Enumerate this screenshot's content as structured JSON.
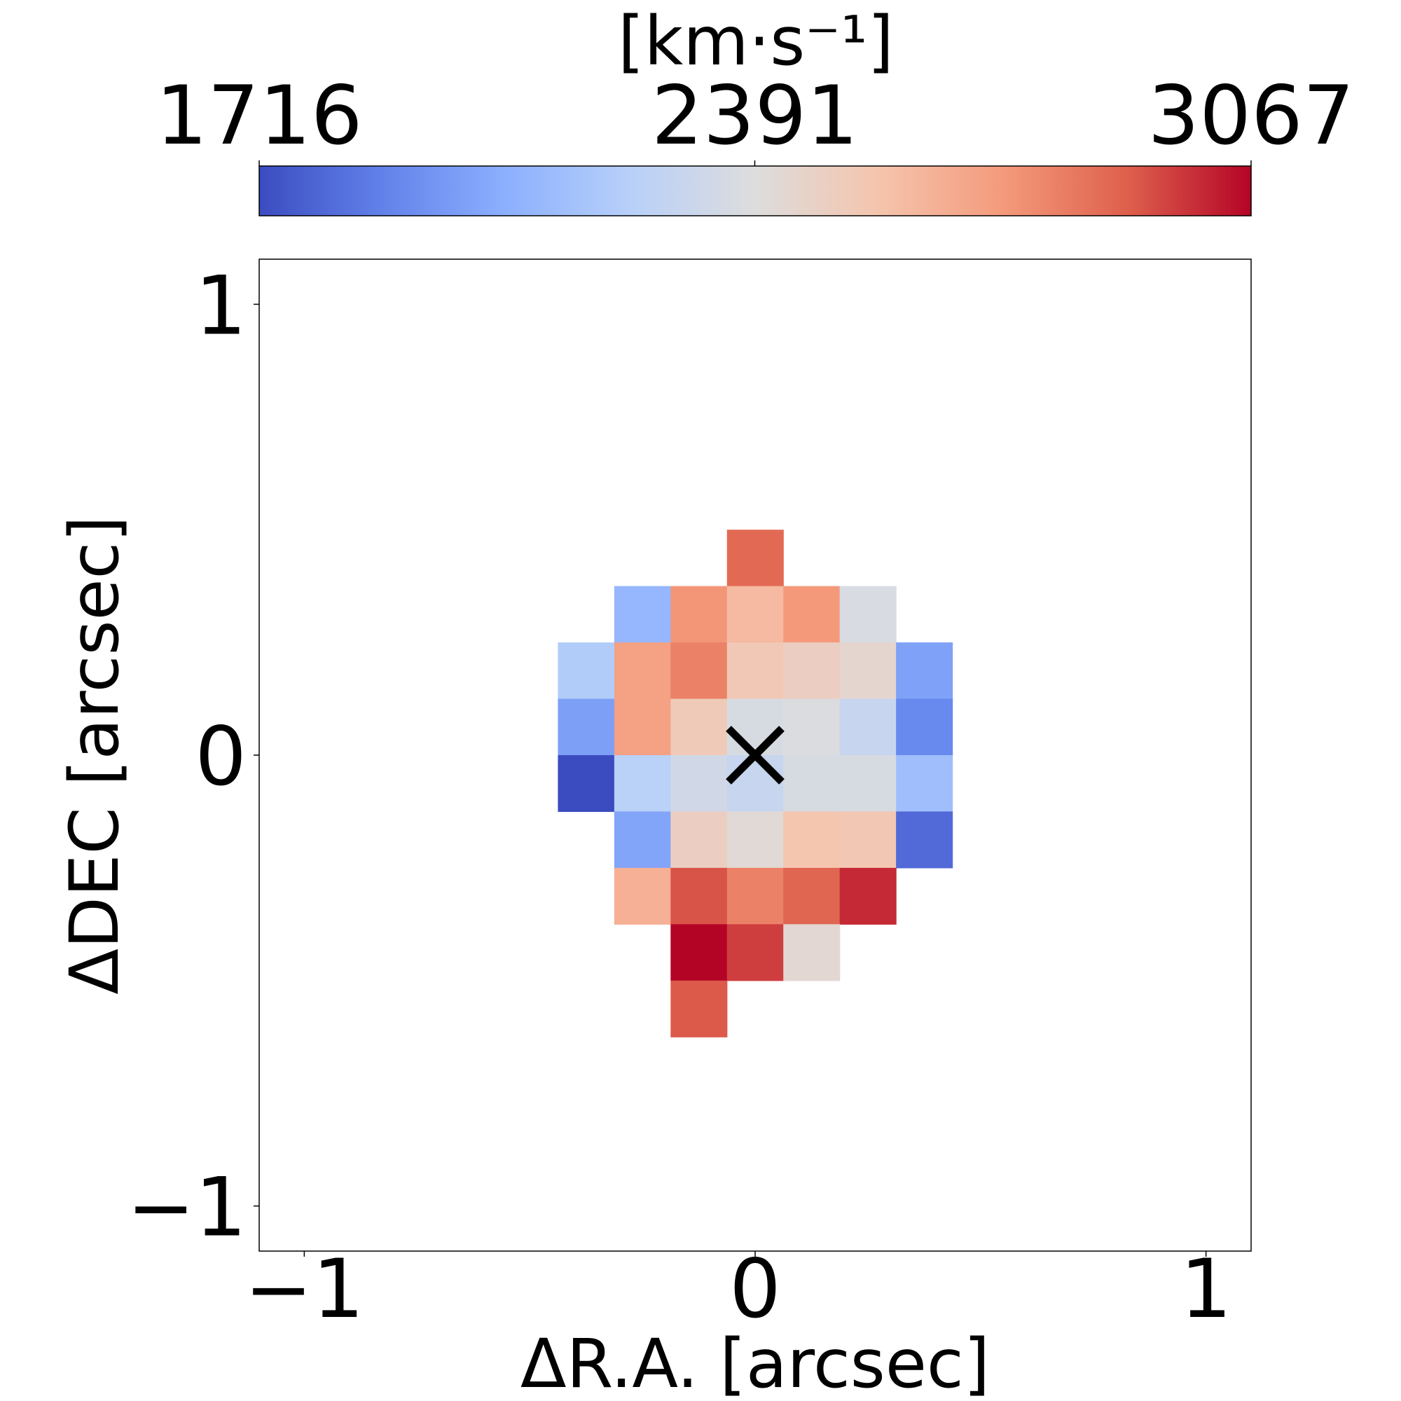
{
  "chart_data": {
    "type": "heatmap",
    "xlabel": "ΔR.A. [arcsec]",
    "ylabel": "ΔDEC [arcsec]",
    "xlim": [
      -1.1,
      1.1
    ],
    "ylim": [
      -1.1,
      1.1
    ],
    "xticks": [
      {
        "value": -1,
        "label": "−1"
      },
      {
        "value": 0,
        "label": "0"
      },
      {
        "value": 1,
        "label": "1"
      }
    ],
    "yticks": [
      {
        "value": -1,
        "label": "−1"
      },
      {
        "value": 0,
        "label": "0"
      },
      {
        "value": 1,
        "label": "1"
      }
    ],
    "pixel_size_arcsec": 0.125,
    "colorbar": {
      "label": "[km·s⁻¹]",
      "colormap": "coolwarm",
      "min": 1716,
      "max": 3067,
      "ticks": [
        {
          "value": 1716,
          "label": "1716"
        },
        {
          "value": 2391,
          "label": "2391"
        },
        {
          "value": 3067,
          "label": "3067"
        }
      ]
    },
    "marker": {
      "type": "x",
      "x": 0,
      "y": 0,
      "color": "#000000"
    },
    "cells": [
      {
        "x": 0.0,
        "y": 0.4375,
        "value": 2870
      },
      {
        "x": -0.25,
        "y": 0.3125,
        "value": 2090
      },
      {
        "x": -0.125,
        "y": 0.3125,
        "value": 2740
      },
      {
        "x": 0.0,
        "y": 0.3125,
        "value": 2600
      },
      {
        "x": 0.125,
        "y": 0.3125,
        "value": 2730
      },
      {
        "x": 0.25,
        "y": 0.3125,
        "value": 2370
      },
      {
        "x": -0.375,
        "y": 0.1875,
        "value": 2200
      },
      {
        "x": -0.25,
        "y": 0.1875,
        "value": 2700
      },
      {
        "x": -0.125,
        "y": 0.1875,
        "value": 2800
      },
      {
        "x": 0.0,
        "y": 0.1875,
        "value": 2530
      },
      {
        "x": 0.125,
        "y": 0.1875,
        "value": 2490
      },
      {
        "x": 0.25,
        "y": 0.1875,
        "value": 2440
      },
      {
        "x": 0.375,
        "y": 0.1875,
        "value": 2000
      },
      {
        "x": -0.375,
        "y": 0.0625,
        "value": 1990
      },
      {
        "x": -0.25,
        "y": 0.0625,
        "value": 2700
      },
      {
        "x": -0.125,
        "y": 0.0625,
        "value": 2520
      },
      {
        "x": 0.0,
        "y": 0.0625,
        "value": 2360
      },
      {
        "x": 0.125,
        "y": 0.0625,
        "value": 2380
      },
      {
        "x": 0.25,
        "y": 0.0625,
        "value": 2290
      },
      {
        "x": 0.375,
        "y": 0.0625,
        "value": 1910
      },
      {
        "x": -0.375,
        "y": -0.0625,
        "value": 1716
      },
      {
        "x": -0.25,
        "y": -0.0625,
        "value": 2230
      },
      {
        "x": -0.125,
        "y": -0.0625,
        "value": 2330
      },
      {
        "x": 0.0,
        "y": -0.0625,
        "value": 2290
      },
      {
        "x": 0.125,
        "y": -0.0625,
        "value": 2360
      },
      {
        "x": 0.25,
        "y": -0.0625,
        "value": 2360
      },
      {
        "x": 0.375,
        "y": -0.0625,
        "value": 2130
      },
      {
        "x": -0.25,
        "y": -0.1875,
        "value": 2010
      },
      {
        "x": -0.125,
        "y": -0.1875,
        "value": 2490
      },
      {
        "x": 0.0,
        "y": -0.1875,
        "value": 2420
      },
      {
        "x": 0.125,
        "y": -0.1875,
        "value": 2550
      },
      {
        "x": 0.25,
        "y": -0.1875,
        "value": 2540
      },
      {
        "x": 0.375,
        "y": -0.1875,
        "value": 1810
      },
      {
        "x": -0.25,
        "y": -0.3125,
        "value": 2640
      },
      {
        "x": -0.125,
        "y": -0.3125,
        "value": 2920
      },
      {
        "x": 0.0,
        "y": -0.3125,
        "value": 2800
      },
      {
        "x": 0.125,
        "y": -0.3125,
        "value": 2880
      },
      {
        "x": 0.25,
        "y": -0.3125,
        "value": 3000
      },
      {
        "x": -0.125,
        "y": -0.4375,
        "value": 3067
      },
      {
        "x": 0.0,
        "y": -0.4375,
        "value": 2960
      },
      {
        "x": 0.125,
        "y": -0.4375,
        "value": 2430
      },
      {
        "x": -0.125,
        "y": -0.5625,
        "value": 2910
      }
    ]
  }
}
